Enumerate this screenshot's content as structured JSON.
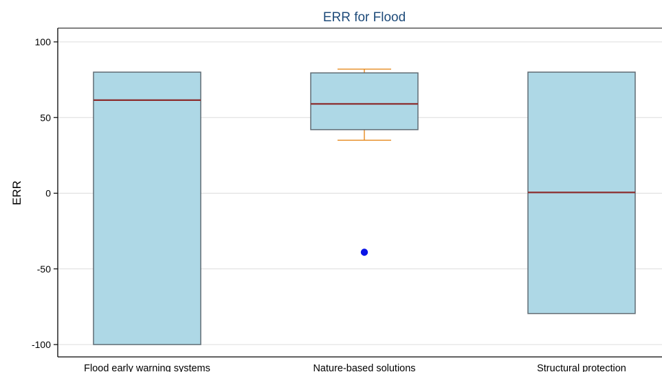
{
  "chart_data": {
    "type": "box",
    "title": "ERR for Flood",
    "xlabel": "",
    "ylabel": "ERR",
    "ylim": [
      -110,
      110
    ],
    "yticks": [
      -100,
      -50,
      0,
      50,
      100
    ],
    "ytick_labels": [
      "-100",
      "-50",
      "0",
      "50",
      "100"
    ],
    "grid": true,
    "legend": "none",
    "categories": [
      "Flood early warning systems",
      "Nature-based solutions",
      "Structural protection"
    ],
    "boxes": [
      {
        "category": "Flood early warning systems",
        "q1": -100,
        "median": 61.5,
        "q3": 80,
        "whisker_low": -100,
        "whisker_high": 80,
        "outliers": []
      },
      {
        "category": "Nature-based solutions",
        "q1": 42,
        "median": 59,
        "q3": 79.5,
        "whisker_low": 35,
        "whisker_high": 82,
        "outliers": [
          -39
        ]
      },
      {
        "category": "Structural protection",
        "q1": -79.5,
        "median": 0.5,
        "q3": 80,
        "whisker_low": -79.5,
        "whisker_high": 80,
        "outliers": []
      }
    ]
  },
  "colors": {
    "title": "#1e4b7a",
    "box_fill": "#aed8e6",
    "box_edge": "#5f6b73",
    "median": "#8b2a2a",
    "whisker": "#e68a1e",
    "outlier": "#0a14e6",
    "grid": "#dcdcdc",
    "axis": "#000000"
  }
}
